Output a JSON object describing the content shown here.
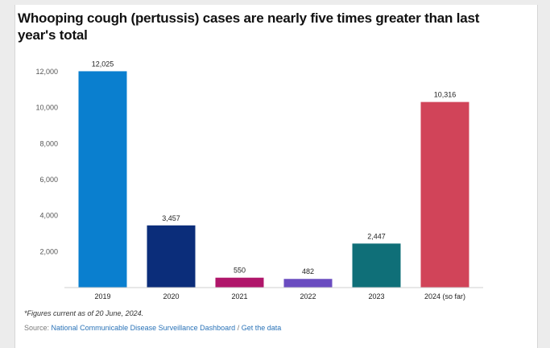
{
  "title": "Whooping cough (pertussis) cases are nearly five times greater than last year's total",
  "footnote": "*Figures current as of 20 June, 2024.",
  "source": {
    "label": "Source:",
    "link_text": "National Communicable Disease Surveillance Dashboard",
    "separator": "/",
    "data_link_text": "Get the data"
  },
  "chart_data": {
    "type": "bar",
    "title": "Whooping cough (pertussis) cases are nearly five times greater than last year's total",
    "categories": [
      "2019",
      "2020",
      "2021",
      "2022",
      "2023",
      "2024 (so far)"
    ],
    "values": [
      12025,
      3457,
      550,
      482,
      2447,
      10316
    ],
    "value_labels": [
      "12,025",
      "3,457",
      "550",
      "482",
      "2,447",
      "10,316"
    ],
    "colors": [
      "#0a7fcf",
      "#0b2d7a",
      "#b0166a",
      "#6a4cc0",
      "#0f6f78",
      "#d14459"
    ],
    "yticks": [
      "2,000",
      "4,000",
      "6,000",
      "8,000",
      "10,000",
      "12,000"
    ],
    "ytick_values": [
      2000,
      4000,
      6000,
      8000,
      10000,
      12000
    ],
    "ylim": [
      0,
      12000
    ],
    "xlabel": "",
    "ylabel": "",
    "grid": false
  }
}
